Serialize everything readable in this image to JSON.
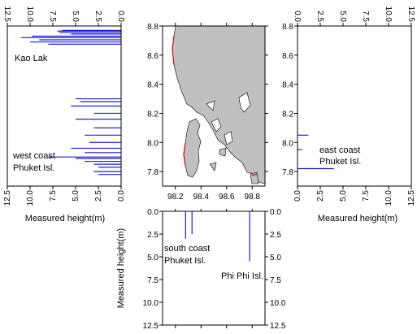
{
  "chart_data": [
    {
      "panel": "west",
      "type": "bar",
      "orientation": "horizontal",
      "direction": "leftward",
      "xlabel": "Measured height(m)",
      "ylabel": "",
      "xlim": [
        0,
        12.5
      ],
      "ylim": [
        7.7,
        8.8
      ],
      "xticks": [
        "0.0",
        "2.5",
        "5.0",
        "7.5",
        "10.0",
        "12.5"
      ],
      "yticks": [
        "7.8",
        "8.0",
        "8.2",
        "8.4",
        "8.6",
        "8.8"
      ],
      "bar_color": "#1f1fd0",
      "points": [
        {
          "lat": 8.77,
          "height": 6.5
        },
        {
          "lat": 8.765,
          "height": 7.0
        },
        {
          "lat": 8.755,
          "height": 6.8
        },
        {
          "lat": 8.745,
          "height": 5.5
        },
        {
          "lat": 8.73,
          "height": 9.8
        },
        {
          "lat": 8.72,
          "height": 11.0
        },
        {
          "lat": 8.705,
          "height": 9.0
        },
        {
          "lat": 8.69,
          "height": 10.0
        },
        {
          "lat": 8.675,
          "height": 8.0
        },
        {
          "lat": 8.3,
          "height": 5.0
        },
        {
          "lat": 8.28,
          "height": 4.5
        },
        {
          "lat": 8.25,
          "height": 5.5
        },
        {
          "lat": 8.2,
          "height": 3.0
        },
        {
          "lat": 8.16,
          "height": 5.0
        },
        {
          "lat": 8.1,
          "height": 3.0
        },
        {
          "lat": 8.05,
          "height": 4.0
        },
        {
          "lat": 8.0,
          "height": 3.5
        },
        {
          "lat": 7.96,
          "height": 5.5
        },
        {
          "lat": 7.93,
          "height": 4.0
        },
        {
          "lat": 7.9,
          "height": 8.0
        },
        {
          "lat": 7.89,
          "height": 5.0
        },
        {
          "lat": 7.87,
          "height": 4.0
        },
        {
          "lat": 7.85,
          "height": 3.0
        },
        {
          "lat": 7.83,
          "height": 2.5
        },
        {
          "lat": 7.8,
          "height": 3.0
        },
        {
          "lat": 7.78,
          "height": 2.5
        }
      ],
      "annotations": [
        "Kao Lak",
        "west coast",
        "Phuket Isl."
      ]
    },
    {
      "panel": "map",
      "type": "map",
      "xlim": [
        98.1,
        98.9
      ],
      "ylim": [
        7.7,
        8.8
      ],
      "xticks": [
        "98.2",
        "98.4",
        "98.6",
        "98.8"
      ],
      "yticks": [
        "7.8",
        "8.0",
        "8.2",
        "8.4",
        "8.6",
        "8.8"
      ],
      "land_color": "#c0c0c0",
      "coast_highlight_color": "#e00000"
    },
    {
      "panel": "east",
      "type": "bar",
      "orientation": "horizontal",
      "direction": "rightward",
      "xlabel": "Measured height(m)",
      "ylabel": "",
      "xlim": [
        0,
        12.5
      ],
      "ylim": [
        7.7,
        8.8
      ],
      "xticks": [
        "0.0",
        "2.5",
        "5.0",
        "7.5",
        "10.0",
        "12.5"
      ],
      "yticks": [
        "7.8",
        "8.0",
        "8.2",
        "8.4",
        "8.6",
        "8.8"
      ],
      "bar_color": "#1f1fd0",
      "points": [
        {
          "lat": 8.05,
          "height": 1.2
        },
        {
          "lat": 7.95,
          "height": 0.5
        },
        {
          "lat": 7.82,
          "height": 4.0
        }
      ],
      "annotations": [
        "east coast",
        "Phuket Isl."
      ]
    },
    {
      "panel": "south",
      "type": "bar",
      "orientation": "vertical",
      "direction": "downward",
      "xlabel": "",
      "ylabel": "Measured height(m)",
      "xlim": [
        98.1,
        98.9
      ],
      "ylim": [
        0,
        12.5
      ],
      "yticks": [
        "0.0",
        "2.5",
        "5.0",
        "7.5",
        "10.0",
        "12.5"
      ],
      "bar_color": "#1f1fd0",
      "points": [
        {
          "lon": 98.28,
          "height": 3.0
        },
        {
          "lon": 98.33,
          "height": 2.5
        },
        {
          "lon": 98.78,
          "height": 5.5
        }
      ],
      "annotations": [
        "south coast",
        "Phuket Isl.",
        "Phi Phi Isl."
      ]
    }
  ]
}
